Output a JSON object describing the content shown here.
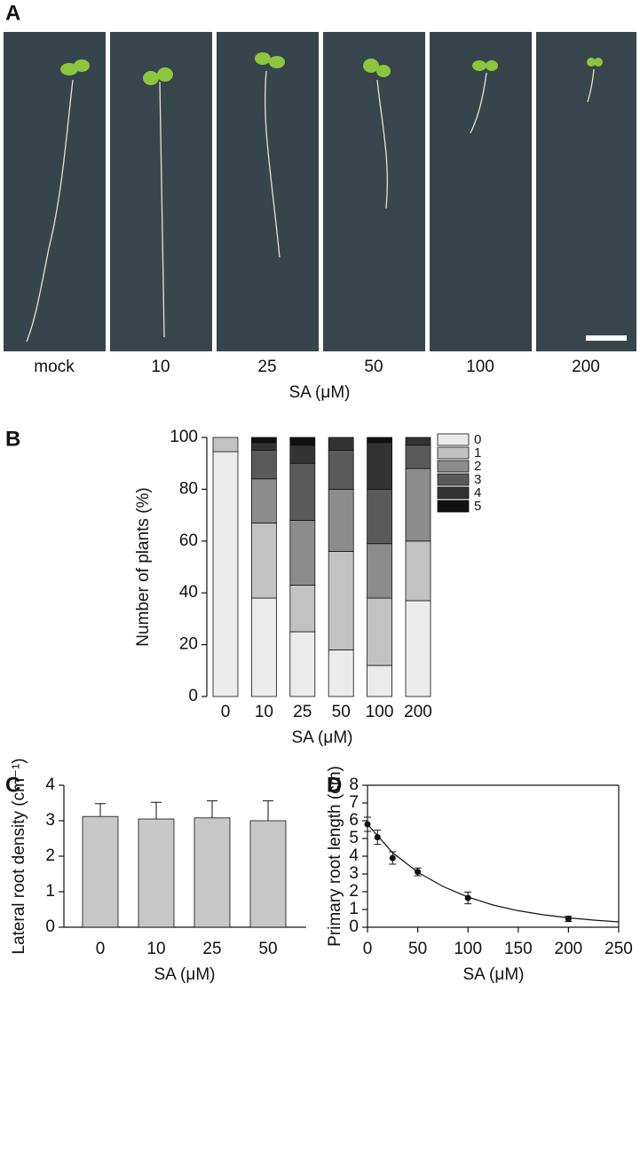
{
  "photo_panel": {
    "panel": "A",
    "labels": [
      "mock",
      "10",
      "25",
      "50",
      "100",
      "200"
    ],
    "axis_label": "SA (μM)"
  },
  "chart_data": [
    {
      "type": "stacked-bar",
      "panel": "B",
      "x_label": "SA (μM)",
      "y_label": "Number of plants (%)",
      "categories": [
        "0",
        "10",
        "25",
        "50",
        "100",
        "200"
      ],
      "ylim": [
        0,
        100
      ],
      "yticks": [
        0,
        20,
        40,
        60,
        80,
        100
      ],
      "series": [
        {
          "name": "0",
          "color": "#ebebeb",
          "values": [
            94.5,
            38,
            25,
            18,
            12,
            37
          ]
        },
        {
          "name": "1",
          "color": "#c2c2c2",
          "values": [
            5.5,
            29,
            18,
            38,
            26,
            23
          ]
        },
        {
          "name": "2",
          "color": "#8c8c8c",
          "values": [
            0,
            17,
            25,
            24,
            21,
            28
          ]
        },
        {
          "name": "3",
          "color": "#5a5a5a",
          "values": [
            0,
            11,
            22,
            15,
            21,
            9
          ]
        },
        {
          "name": "4",
          "color": "#333333",
          "values": [
            0,
            3,
            7,
            5,
            18,
            3
          ]
        },
        {
          "name": "5",
          "color": "#111111",
          "values": [
            0,
            2,
            3,
            0,
            2,
            0
          ]
        }
      ]
    },
    {
      "type": "bar",
      "panel": "C",
      "x_label": "SA (μM)",
      "y_label": "Lateral root density (cm⁻¹)",
      "categories": [
        "0",
        "10",
        "25",
        "50"
      ],
      "values": [
        3.12,
        3.05,
        3.08,
        3.0
      ],
      "errors": [
        0.36,
        0.47,
        0.48,
        0.56
      ],
      "color": "#c8c8c8",
      "ylim": [
        0,
        4
      ],
      "yticks": [
        0,
        1,
        2,
        3,
        4
      ]
    },
    {
      "type": "scatter",
      "panel": "D",
      "x_label": "SA (μM)",
      "y_label": "Primary root length (cm)",
      "x": [
        0,
        10,
        25,
        50,
        100,
        200
      ],
      "values": [
        5.8,
        5.07,
        3.9,
        3.12,
        1.65,
        0.47
      ],
      "errors": [
        0.4,
        0.4,
        0.35,
        0.22,
        0.33,
        0.15
      ],
      "color": "#111111",
      "curve": {
        "x": [
          0,
          25,
          50,
          75,
          100,
          125,
          150,
          175,
          200,
          225,
          250
        ],
        "y": [
          5.8,
          4.2,
          3.1,
          2.3,
          1.7,
          1.25,
          0.93,
          0.7,
          0.53,
          0.4,
          0.3
        ]
      },
      "xlim": [
        0,
        250
      ],
      "xticks": [
        0,
        50,
        100,
        150,
        200,
        250
      ],
      "ylim": [
        0,
        8
      ],
      "yticks": [
        0,
        1,
        2,
        3,
        4,
        5,
        6,
        7,
        8
      ]
    }
  ]
}
